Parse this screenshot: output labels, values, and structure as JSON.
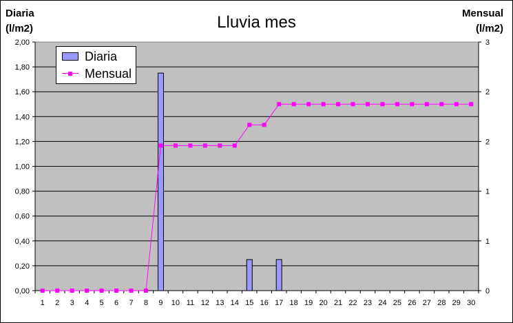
{
  "chart_data": {
    "type": "bar+line",
    "title": "Lluvia mes",
    "y_left_label": [
      "Diaria",
      "(l/m2)"
    ],
    "y_right_label": [
      "Mensual",
      "(l/m2)"
    ],
    "x": [
      1,
      2,
      3,
      4,
      5,
      6,
      7,
      8,
      9,
      10,
      11,
      12,
      13,
      14,
      15,
      16,
      17,
      18,
      19,
      20,
      21,
      22,
      23,
      24,
      25,
      26,
      27,
      28,
      29,
      30
    ],
    "y_left_ticks": [
      "0,00",
      "0,20",
      "0,40",
      "0,60",
      "0,80",
      "1,00",
      "1,20",
      "1,40",
      "1,60",
      "1,80",
      "2,00"
    ],
    "y_left_lim": [
      0,
      2
    ],
    "y_right_ticks": [
      "0",
      "1",
      "1",
      "2",
      "2",
      "3"
    ],
    "y_right_lim": [
      0,
      3
    ],
    "grid": true,
    "legend": "top-left",
    "series": [
      {
        "name": "Diaria",
        "kind": "bar",
        "axis": "left",
        "color": "#9999ff",
        "values": [
          0,
          0,
          0,
          0,
          0,
          0,
          0,
          0,
          1.75,
          0,
          0,
          0,
          0,
          0,
          0.25,
          0,
          0.25,
          0,
          0,
          0,
          0,
          0,
          0,
          0,
          0,
          0,
          0,
          0,
          0,
          0
        ]
      },
      {
        "name": "Mensual",
        "kind": "line",
        "axis": "right",
        "color": "#ff00ff",
        "values": [
          0,
          0,
          0,
          0,
          0,
          0,
          0,
          0,
          1.75,
          1.75,
          1.75,
          1.75,
          1.75,
          1.75,
          2.0,
          2.0,
          2.25,
          2.25,
          2.25,
          2.25,
          2.25,
          2.25,
          2.25,
          2.25,
          2.25,
          2.25,
          2.25,
          2.25,
          2.25,
          2.25
        ]
      }
    ]
  }
}
